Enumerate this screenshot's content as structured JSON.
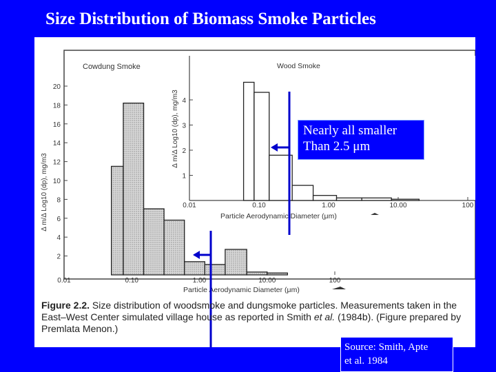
{
  "slide": {
    "title": "Size Distribution of Biomass Smoke Particles",
    "background_color": "#0000ff",
    "callout_line1": "Nearly all smaller",
    "callout_line2": "Than 2.5 μm",
    "source_line1": "Source: Smith, Apte",
    "source_line2": "et al.  1984"
  },
  "figure": {
    "caption_prefix": "Figure 2.2.",
    "caption_body1": "  Size distribution of woodsmoke and dungsmoke particles. Measurements taken in the East–West Center simulated village house as reported in Smith ",
    "caption_italic": "et al.",
    "caption_body2": " (1984b). (Figure prepared by Premlata Menon.)"
  },
  "chart_data": [
    {
      "type": "bar",
      "title": "Cowdung Smoke",
      "xlabel": "Particle Aerodynamic Diameter (μm)",
      "ylabel": "Δ m/Δ Log10 (dp), mg/m3",
      "x_scale": "log",
      "xlim": [
        0.01,
        1000
      ],
      "ylim": [
        0,
        22
      ],
      "xticks": [
        "0.01",
        "0.10",
        "1.00",
        "10.00",
        "100"
      ],
      "yticks": [
        "2",
        "4",
        "6",
        "8",
        "10",
        "12",
        "14",
        "16",
        "18",
        "20"
      ],
      "bins": [
        {
          "x0": 0.05,
          "x1": 0.075,
          "value": 11.5
        },
        {
          "x0": 0.075,
          "x1": 0.15,
          "value": 18.2
        },
        {
          "x0": 0.15,
          "x1": 0.3,
          "value": 7.0
        },
        {
          "x0": 0.3,
          "x1": 0.6,
          "value": 5.8
        },
        {
          "x0": 0.6,
          "x1": 1.2,
          "value": 1.4
        },
        {
          "x0": 1.2,
          "x1": 2.4,
          "value": 1.1
        },
        {
          "x0": 2.4,
          "x1": 5,
          "value": 2.7
        },
        {
          "x0": 5,
          "x1": 10,
          "value": 0.3
        },
        {
          "x0": 10,
          "x1": 20,
          "value": 0.2
        }
      ],
      "hatch_color": "#bdbdbd"
    },
    {
      "type": "bar",
      "title": "Wood Smoke",
      "xlabel": "Particle Aerodynamic Diameter (μm)",
      "ylabel": "Δ m/Δ Log10 (dp), mg/m3",
      "x_scale": "log",
      "xlim": [
        0.01,
        100
      ],
      "ylim": [
        0,
        5
      ],
      "xticks": [
        "0.01",
        "0.10",
        "1.00",
        "10.00",
        "100"
      ],
      "yticks": [
        "1",
        "2",
        "3",
        "4"
      ],
      "bins": [
        {
          "x0": 0.06,
          "x1": 0.085,
          "value": 4.7
        },
        {
          "x0": 0.085,
          "x1": 0.14,
          "value": 4.3
        },
        {
          "x0": 0.14,
          "x1": 0.3,
          "value": 1.8
        },
        {
          "x0": 0.3,
          "x1": 0.6,
          "value": 0.6
        },
        {
          "x0": 0.6,
          "x1": 1.3,
          "value": 0.2
        },
        {
          "x0": 1.3,
          "x1": 3,
          "value": 0.1
        },
        {
          "x0": 3,
          "x1": 8,
          "value": 0.1
        },
        {
          "x0": 8,
          "x1": 20,
          "value": 0.05
        }
      ]
    }
  ]
}
